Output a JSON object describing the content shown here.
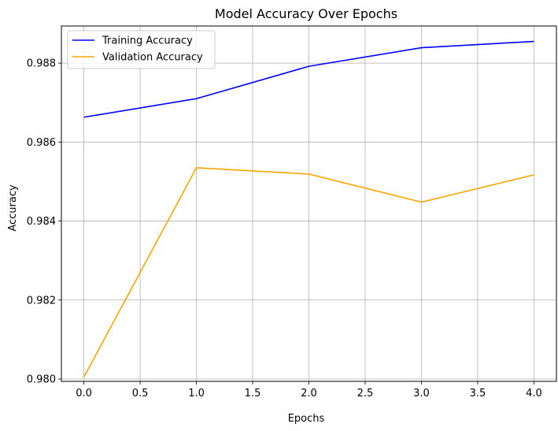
{
  "chart_data": {
    "type": "line",
    "title": "Model Accuracy Over Epochs",
    "xlabel": "Epochs",
    "ylabel": "Accuracy",
    "x": [
      0,
      1,
      2,
      3,
      4
    ],
    "xlim": [
      -0.2,
      4.2
    ],
    "ylim": [
      0.97994,
      0.98894
    ],
    "xticks": [
      0.0,
      0.5,
      1.0,
      1.5,
      2.0,
      2.5,
      3.0,
      3.5,
      4.0
    ],
    "xtick_labels": [
      "0.0",
      "0.5",
      "1.0",
      "1.5",
      "2.0",
      "2.5",
      "3.0",
      "3.5",
      "4.0"
    ],
    "yticks": [
      0.98,
      0.982,
      0.984,
      0.986,
      0.988
    ],
    "ytick_labels": [
      "0.980",
      "0.982",
      "0.984",
      "0.986",
      "0.988"
    ],
    "grid": true,
    "legend_position": "upper-left",
    "series": [
      {
        "name": "Training Accuracy",
        "color": "#0000ff",
        "values": [
          0.98663,
          0.9871,
          0.98792,
          0.98839,
          0.98855
        ]
      },
      {
        "name": "Validation Accuracy",
        "color": "#ffa500",
        "values": [
          0.98005,
          0.98535,
          0.98519,
          0.98448,
          0.98517
        ]
      }
    ]
  }
}
